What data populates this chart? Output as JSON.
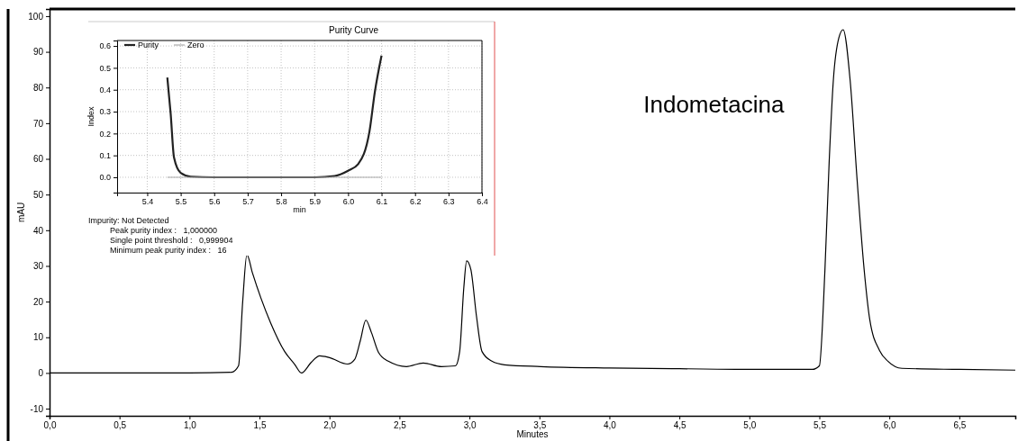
{
  "chart_data": [
    {
      "type": "line",
      "xlabel": "Minutes",
      "ylabel": "mAU",
      "annotations": [
        "Indometacina"
      ],
      "legend": false,
      "grid": false,
      "line_style": "solid",
      "marker": "none",
      "xlim": [
        0,
        6.9
      ],
      "ylim": [
        -12,
        102
      ],
      "xticks": [
        {
          "value": 0,
          "label": "0,0"
        },
        {
          "value": 0.5,
          "label": "0,5"
        },
        {
          "value": 1,
          "label": "1,0"
        },
        {
          "value": 1.5,
          "label": "1,5"
        },
        {
          "value": 2,
          "label": "2,0"
        },
        {
          "value": 2.5,
          "label": "2,5"
        },
        {
          "value": 3,
          "label": "3,0"
        },
        {
          "value": 3.5,
          "label": "3,5"
        },
        {
          "value": 4,
          "label": "4,0"
        },
        {
          "value": 4.5,
          "label": "4,5"
        },
        {
          "value": 5,
          "label": "5,0"
        },
        {
          "value": 5.5,
          "label": "5,5"
        },
        {
          "value": 6,
          "label": "6,0"
        },
        {
          "value": 6.5,
          "label": "6,5"
        }
      ],
      "yticks": [
        -10,
        0,
        10,
        20,
        30,
        40,
        50,
        60,
        70,
        80,
        90,
        100
      ],
      "series": [
        {
          "color": "#000000",
          "x": [
            0,
            0.5,
            1.0,
            1.3,
            1.35,
            1.38,
            1.41,
            1.45,
            1.51,
            1.58,
            1.68,
            1.75,
            1.8,
            1.87,
            1.93,
            2.0,
            2.13,
            2.18,
            2.22,
            2.26,
            2.3,
            2.35,
            2.42,
            2.55,
            2.67,
            2.8,
            2.9,
            2.93,
            2.96,
            2.98,
            3.01,
            3.05,
            3.09,
            3.16,
            3.25,
            3.51,
            4.0,
            4.5,
            5.0,
            5.45,
            5.5,
            5.54,
            5.57,
            5.6,
            5.64,
            5.67,
            5.72,
            5.77,
            5.82,
            5.86,
            5.93,
            5.99,
            6.09,
            6.5,
            6.9
          ],
          "values": [
            0,
            0,
            0,
            0.2,
            2,
            20,
            33.2,
            28,
            21,
            14,
            6,
            2.5,
            0,
            3,
            4.8,
            4.3,
            2.5,
            3.8,
            9,
            14.8,
            11.3,
            5.8,
            3.3,
            1.8,
            2.8,
            1.8,
            2,
            6,
            24,
            31.4,
            29,
            16,
            6,
            3.3,
            2.3,
            1.8,
            1.4,
            1.2,
            1.0,
            1.0,
            2,
            29,
            59,
            82,
            94,
            96.2,
            82,
            54,
            29,
            15,
            6.3,
            3.3,
            1.3,
            1.0,
            0.8
          ]
        }
      ]
    },
    {
      "type": "line",
      "title": "Purity Curve",
      "xlabel": "min",
      "ylabel": "Index",
      "legend": "top left",
      "grid": true,
      "marker": "none",
      "annotations": [
        "Impurity: Not Detected",
        "Peak purity index :   1,000000",
        "Single point threshold :   0,999904",
        "Minimum peak purity index :   16"
      ],
      "xlim": [
        5.31,
        6.4
      ],
      "ylim": [
        -0.07,
        0.625
      ],
      "xticks": [
        5.4,
        5.5,
        5.6,
        5.7,
        5.8,
        5.9,
        {
          "value": 6,
          "label": "6.0"
        },
        6.1,
        6.2,
        6.3,
        6.4
      ],
      "yticks": [
        {
          "value": 0,
          "label": "0.0"
        },
        0.1,
        0.2,
        0.3,
        0.4,
        0.5,
        0.6
      ],
      "series": [
        {
          "name": "Purity",
          "color": "#222222",
          "line_style": "solid",
          "x": [
            5.46,
            5.47,
            5.48,
            5.5,
            5.53,
            5.6,
            5.7,
            5.8,
            5.9,
            5.96,
            6.0,
            6.03,
            6.064,
            6.08,
            6.1
          ],
          "values": [
            0.456,
            0.29,
            0.09,
            0.02,
            0.003,
            0,
            0,
            0,
            0,
            0.006,
            0.03,
            0.06,
            0.21,
            0.39,
            0.556
          ]
        },
        {
          "name": "Zero",
          "color": "#aaaaaa",
          "line_style": "solid",
          "x": [
            5.46,
            6.1
          ],
          "values": [
            0,
            0
          ]
        }
      ]
    }
  ]
}
